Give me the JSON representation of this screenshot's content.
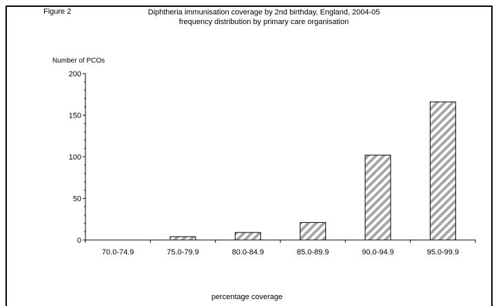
{
  "figure_label": "Figure 2",
  "chart_data": {
    "type": "bar",
    "title": "Diphtheria immunisation coverage by 2nd birthday, England, 2004-05",
    "subtitle": "frequency distribution by primary care organisation",
    "ylabel": "Number of PCOs",
    "xlabel": "percentage coverage",
    "categories": [
      "70.0-74.9",
      "75.0-79.9",
      "80.0-84.9",
      "85.0-89.9",
      "90.0-94.9",
      "95.0-99.9"
    ],
    "values": [
      0,
      4,
      9,
      21,
      102,
      166
    ],
    "ylim": [
      0,
      200
    ],
    "yticks": [
      0,
      50,
      100,
      150,
      200
    ],
    "grid": false,
    "bar_fill": "hatched",
    "colors": {
      "hatch": "#a6a6a6",
      "bar_fill": "#ffffff",
      "outline": "#000000"
    }
  }
}
